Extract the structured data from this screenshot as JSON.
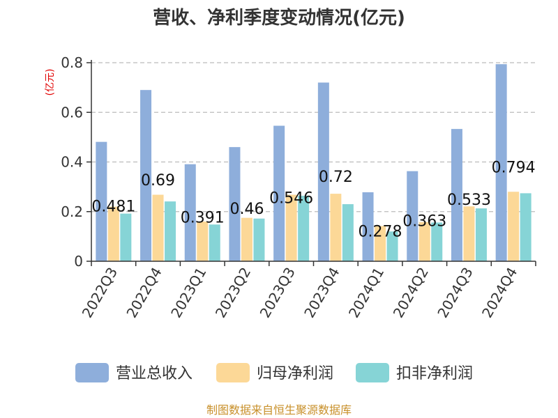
{
  "chart_data": {
    "type": "bar",
    "title": "营收、净利季度变动情况(亿元)",
    "ylabel": "(亿元)",
    "xlabel": "",
    "categories": [
      "2022Q3",
      "2022Q4",
      "2023Q1",
      "2023Q2",
      "2023Q3",
      "2023Q4",
      "2024Q1",
      "2024Q2",
      "2024Q3",
      "2024Q4"
    ],
    "series": [
      {
        "name": "营业总收入",
        "color": "#8eaedb",
        "values": [
          0.481,
          0.69,
          0.391,
          0.46,
          0.546,
          0.72,
          0.278,
          0.363,
          0.533,
          0.794
        ]
      },
      {
        "name": "归母净利润",
        "color": "#fcd897",
        "values": [
          0.22,
          0.268,
          0.16,
          0.175,
          0.268,
          0.272,
          0.142,
          0.158,
          0.221,
          0.28
        ]
      },
      {
        "name": "扣非净利润",
        "color": "#86d4d6",
        "values": [
          0.192,
          0.241,
          0.148,
          0.172,
          0.264,
          0.23,
          0.12,
          0.156,
          0.213,
          0.274
        ]
      }
    ],
    "data_labels": [
      "0.481",
      "0.69",
      "0.391",
      "0.46",
      "0.546",
      "0.72",
      "0.278",
      "0.363",
      "0.533",
      "0.794"
    ],
    "yticks": [
      0,
      0.2,
      0.4,
      0.6,
      0.8
    ],
    "ytick_labels": [
      "0",
      "0.2",
      "0.4",
      "0.6",
      "0.8"
    ],
    "ylim": [
      0,
      0.8
    ],
    "grid": true,
    "legend_position": "bottom"
  },
  "source": "制图数据来自恒生聚源数据库"
}
